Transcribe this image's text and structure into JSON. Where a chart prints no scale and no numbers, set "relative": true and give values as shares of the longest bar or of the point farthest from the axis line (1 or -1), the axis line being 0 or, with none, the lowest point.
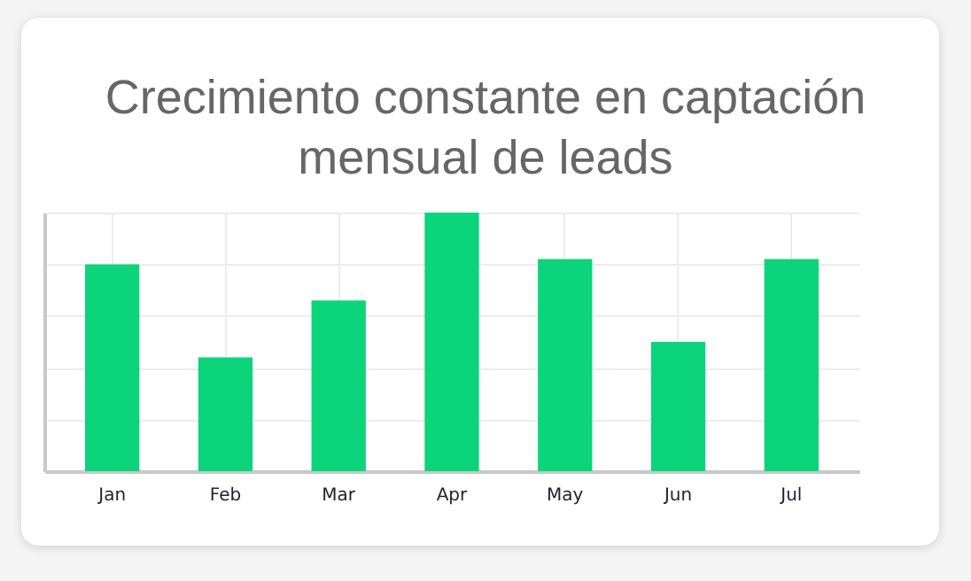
{
  "chart_data": {
    "type": "bar",
    "title": "Crecimiento constante en captación mensual de leads",
    "categories": [
      "Jan",
      "Feb",
      "Mar",
      "Apr",
      "May",
      "Jun",
      "Jul"
    ],
    "values": [
      0.8,
      0.44,
      0.66,
      1,
      0.82,
      0.5,
      0.82
    ],
    "color": "#0cd47a",
    "relative": true,
    "grid": true
  }
}
